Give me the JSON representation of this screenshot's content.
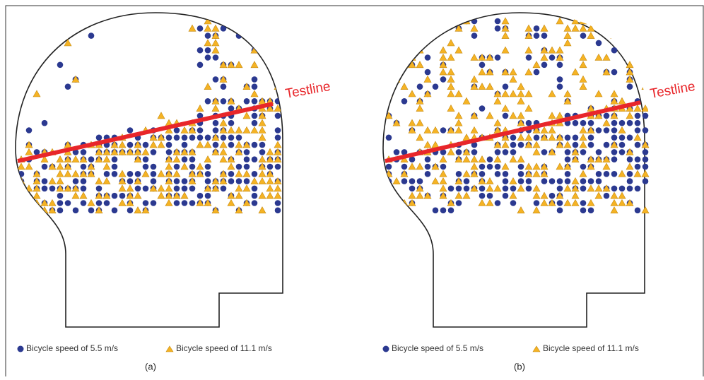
{
  "panels": [
    {
      "testline": "Testline",
      "legend": [
        "Bicycle speed of 5.5 m/s",
        "Bicycle speed of 11.1 m/s"
      ],
      "label": "(a)"
    },
    {
      "testline": "Testline",
      "legend": [
        "Bicycle speed of 5.5 m/s",
        "Bicycle speed of 11.1 m/s"
      ],
      "label": "(b)"
    }
  ]
}
